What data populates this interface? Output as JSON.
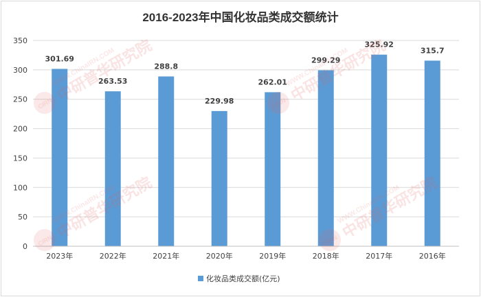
{
  "chart_data": {
    "type": "bar",
    "title": "2016-2023年中国化妆品类成交额统计",
    "categories": [
      "2023年",
      "2022年",
      "2021年",
      "2020年",
      "2019年",
      "2018年",
      "2017年",
      "2016年"
    ],
    "series": [
      {
        "name": "化妆品类成交额(亿元)",
        "values": [
          301.69,
          263.53,
          288.8,
          229.98,
          262.01,
          299.29,
          325.92,
          315.7
        ],
        "color": "#5b9bd5"
      }
    ],
    "value_labels": [
      "301.69",
      "263.53",
      "288.8",
      "229.98",
      "262.01",
      "299.29",
      "325.92",
      "315.7"
    ],
    "yticks": [
      "0",
      "50",
      "100",
      "150",
      "200",
      "250",
      "300",
      "350"
    ],
    "ylim": [
      0,
      350
    ],
    "grid": true,
    "legend_position": "bottom",
    "watermark": {
      "url": "WWW.ChinaIRN.COM",
      "name": "中研普华研究院",
      "logo": "CIRN"
    }
  }
}
